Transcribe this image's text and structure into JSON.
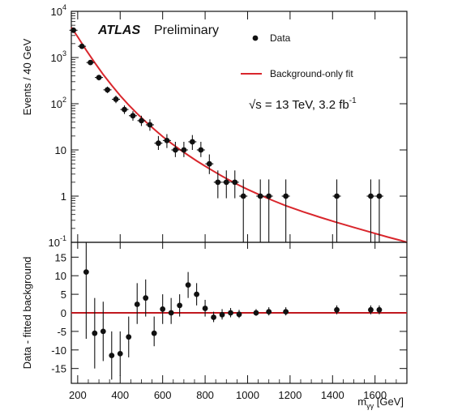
{
  "chart_data": [
    {
      "type": "scatter",
      "panel": "main",
      "ylabel": "Events / 40 GeV",
      "yscale": "log",
      "xlim": [
        170,
        1750
      ],
      "ylim": [
        0.1,
        10000
      ],
      "y_ticks": [
        {
          "value": 10000,
          "base": "10",
          "exp": "4"
        },
        {
          "value": 1000,
          "base": "10",
          "exp": "3"
        },
        {
          "value": 100,
          "base": "10",
          "exp": "2"
        },
        {
          "value": 10,
          "base": "10",
          "exp": ""
        },
        {
          "value": 1,
          "base": "1",
          "exp": ""
        },
        {
          "value": 0.1,
          "base": "10",
          "exp": "-1"
        }
      ],
      "annotations": {
        "atlas": "ATLAS",
        "preliminary": "Preliminary",
        "energy_prefix": "√s = 13 TeV, 3.2 fb",
        "energy_exp": "-1"
      },
      "legend": {
        "placement": "top-right",
        "entries": [
          "Data",
          "Background-only fit"
        ]
      },
      "series": [
        {
          "name": "Data",
          "points": [
            {
              "x": 180,
              "y": 3900,
              "lo": 3600,
              "hi": 4200
            },
            {
              "x": 220,
              "y": 1750,
              "lo": 1600,
              "hi": 1900
            },
            {
              "x": 260,
              "y": 780,
              "lo": 700,
              "hi": 860
            },
            {
              "x": 300,
              "y": 370,
              "lo": 320,
              "hi": 420
            },
            {
              "x": 340,
              "y": 200,
              "lo": 170,
              "hi": 235
            },
            {
              "x": 380,
              "y": 125,
              "lo": 103,
              "hi": 150
            },
            {
              "x": 420,
              "y": 75,
              "lo": 60,
              "hi": 92
            },
            {
              "x": 460,
              "y": 55,
              "lo": 43,
              "hi": 69
            },
            {
              "x": 500,
              "y": 43,
              "lo": 33,
              "hi": 55
            },
            {
              "x": 540,
              "y": 35,
              "lo": 26,
              "hi": 46
            },
            {
              "x": 580,
              "y": 14,
              "lo": 10,
              "hi": 20
            },
            {
              "x": 620,
              "y": 16,
              "lo": 11,
              "hi": 22
            },
            {
              "x": 660,
              "y": 10,
              "lo": 7,
              "hi": 15
            },
            {
              "x": 700,
              "y": 10,
              "lo": 7,
              "hi": 15
            },
            {
              "x": 740,
              "y": 15,
              "lo": 10,
              "hi": 21
            },
            {
              "x": 780,
              "y": 10,
              "lo": 7,
              "hi": 15
            },
            {
              "x": 820,
              "y": 5,
              "lo": 3,
              "hi": 8
            },
            {
              "x": 860,
              "y": 2,
              "lo": 0.9,
              "hi": 3.6
            },
            {
              "x": 900,
              "y": 2,
              "lo": 0.9,
              "hi": 3.6
            },
            {
              "x": 940,
              "y": 2,
              "lo": 0.9,
              "hi": 3.6
            },
            {
              "x": 980,
              "y": 1,
              "lo": 0.1,
              "hi": 2.3
            },
            {
              "x": 1060,
              "y": 1,
              "lo": 0.1,
              "hi": 2.3
            },
            {
              "x": 1100,
              "y": 1,
              "lo": 0.1,
              "hi": 2.3
            },
            {
              "x": 1180,
              "y": 1,
              "lo": 0.1,
              "hi": 2.3
            },
            {
              "x": 1420,
              "y": 1,
              "lo": 0.1,
              "hi": 2.3
            },
            {
              "x": 1580,
              "y": 1,
              "lo": 0.1,
              "hi": 2.3
            },
            {
              "x": 1620,
              "y": 1,
              "lo": 0.1,
              "hi": 2.3
            }
          ]
        },
        {
          "name": "Background-only fit",
          "color": "#d9262c",
          "x": [
            170,
            200,
            240,
            280,
            320,
            360,
            400,
            440,
            480,
            520,
            560,
            600,
            640,
            680,
            720,
            760,
            800,
            840,
            880,
            920,
            960,
            1000,
            1060,
            1120,
            1180,
            1260,
            1340,
            1420,
            1500,
            1580,
            1660,
            1720,
            1750
          ],
          "y": [
            4500,
            2800,
            1450,
            780,
            430,
            250,
            150,
            94,
            61,
            41,
            28,
            19.5,
            14,
            10.3,
            7.7,
            5.8,
            4.45,
            3.45,
            2.7,
            2.15,
            1.72,
            1.4,
            1.05,
            0.8,
            0.62,
            0.46,
            0.35,
            0.27,
            0.21,
            0.165,
            0.13,
            0.11,
            0.1
          ]
        }
      ]
    },
    {
      "type": "scatter",
      "panel": "ratio",
      "xlabel_main": "m",
      "xlabel_sub": "γγ",
      "xlabel_unit": " [GeV]",
      "ylabel": "Data - fitted background",
      "xlim": [
        170,
        1750
      ],
      "ylim": [
        -19,
        19
      ],
      "x_ticks": [
        200,
        400,
        600,
        800,
        1000,
        1200,
        1400,
        1600
      ],
      "y_ticks": [
        15,
        10,
        5,
        0,
        -5,
        -10,
        -15
      ],
      "reference_line": {
        "y": 0,
        "color": "#c0181f"
      },
      "series": [
        {
          "name": "Data - fitted background",
          "points": [
            {
              "x": 240,
              "y": 11,
              "lo": -7,
              "hi": 19
            },
            {
              "x": 280,
              "y": -5.5,
              "lo": -15,
              "hi": 4
            },
            {
              "x": 320,
              "y": -5,
              "lo": -13,
              "hi": 3
            },
            {
              "x": 360,
              "y": -11.5,
              "lo": -18,
              "hi": -5
            },
            {
              "x": 400,
              "y": -11,
              "lo": -17,
              "hi": -5
            },
            {
              "x": 440,
              "y": -6.5,
              "lo": -12,
              "hi": -1
            },
            {
              "x": 480,
              "y": 2.3,
              "lo": -3,
              "hi": 8
            },
            {
              "x": 520,
              "y": 4,
              "lo": -1,
              "hi": 9
            },
            {
              "x": 560,
              "y": -5.5,
              "lo": -9,
              "hi": -1
            },
            {
              "x": 600,
              "y": 1,
              "lo": -3,
              "hi": 5
            },
            {
              "x": 640,
              "y": 0,
              "lo": -3,
              "hi": 4
            },
            {
              "x": 680,
              "y": 2,
              "lo": -1,
              "hi": 5
            },
            {
              "x": 720,
              "y": 7.5,
              "lo": 4,
              "hi": 11
            },
            {
              "x": 760,
              "y": 5,
              "lo": 2,
              "hi": 8
            },
            {
              "x": 800,
              "y": 1.2,
              "lo": -1,
              "hi": 3.5
            },
            {
              "x": 840,
              "y": -1.2,
              "lo": -2.5,
              "hi": 0.3
            },
            {
              "x": 880,
              "y": -0.5,
              "lo": -1.8,
              "hi": 1
            },
            {
              "x": 920,
              "y": 0,
              "lo": -1.2,
              "hi": 1.3
            },
            {
              "x": 960,
              "y": -0.4,
              "lo": -1.4,
              "hi": 0.8
            },
            {
              "x": 1040,
              "y": 0,
              "lo": -0.8,
              "hi": 1
            },
            {
              "x": 1100,
              "y": 0.3,
              "lo": -0.7,
              "hi": 1.5
            },
            {
              "x": 1180,
              "y": 0.3,
              "lo": -0.7,
              "hi": 1.5
            },
            {
              "x": 1420,
              "y": 0.8,
              "lo": -0.4,
              "hi": 2
            },
            {
              "x": 1580,
              "y": 0.8,
              "lo": -0.4,
              "hi": 2
            },
            {
              "x": 1620,
              "y": 0.8,
              "lo": -0.4,
              "hi": 2
            }
          ]
        }
      ]
    }
  ]
}
